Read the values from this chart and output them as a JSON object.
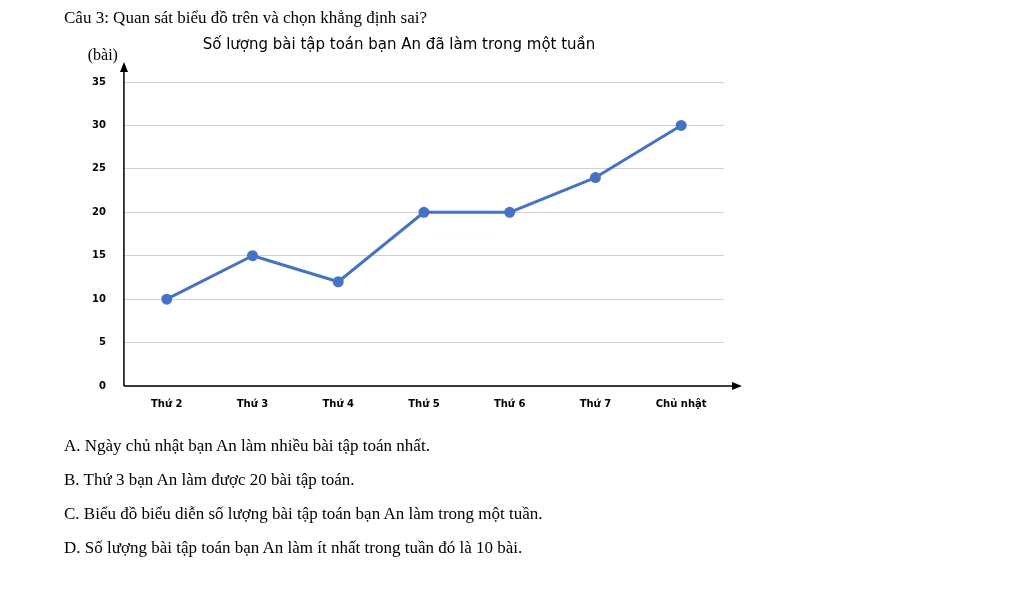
{
  "chart_data": {
    "type": "line",
    "title": "Số lượng bài tập toán bạn An đã làm trong một tuần",
    "ylabel": "(bài)",
    "categories": [
      "Thứ 2",
      "Thứ 3",
      "Thứ 4",
      "Thứ 5",
      "Thứ 6",
      "Thứ 7",
      "Chủ nhật"
    ],
    "series": [
      {
        "color": "#4472c4",
        "values": [
          10,
          15,
          12,
          20,
          20,
          24,
          30
        ]
      }
    ],
    "ylim": [
      0,
      35
    ],
    "yticks": [
      0,
      5,
      10,
      15,
      20,
      25,
      30,
      35
    ],
    "grid": "y",
    "marker": "circle",
    "line_style": "solid",
    "legend": false,
    "annotations": [
      "Câu 3: Quan sát biểu đồ trên và chọn khẳng định sai?",
      "A. Ngày chủ nhật bạn An làm nhiều bài tập toán nhất.",
      "B. Thứ 3 bạn An làm được 20 bài tập toán.",
      "C. Biểu đồ biểu diễn số lượng bài tập toán bạn An làm trong một tuần.",
      "D. Số lượng bài tập toán bạn An làm ít nhất trong tuần đó là 10 bài."
    ]
  }
}
